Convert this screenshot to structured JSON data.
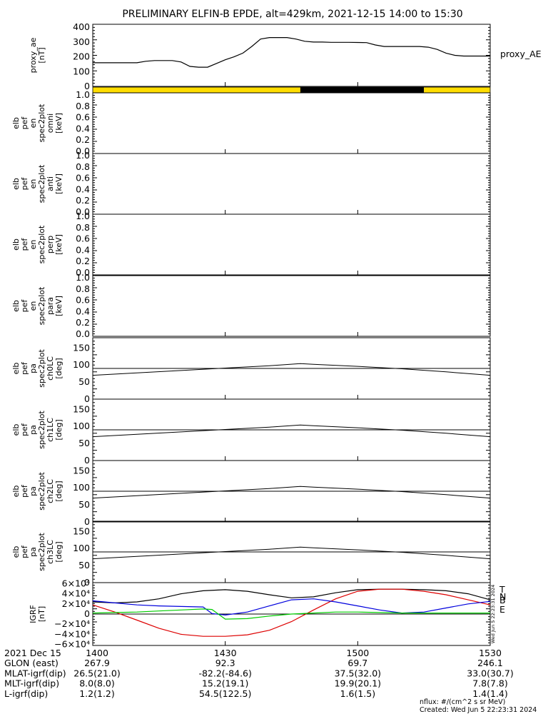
{
  "title": "PRELIMINARY ELFIN-B EPDE, alt=429km, 2021-12-15 14:00 to 15:30",
  "panels": {
    "ae": {
      "ylabel": [
        "proxy_ae",
        "[nT]"
      ],
      "legend": "proxy_AE",
      "yticks": [
        "400",
        "300",
        "200",
        "100",
        "0"
      ]
    },
    "spec_flux": [
      {
        "ylabel": [
          "elb",
          "pef",
          "en",
          "spec2plot",
          "omni",
          "[keV]"
        ]
      },
      {
        "ylabel": [
          "elb",
          "pef",
          "en",
          "spec2plot",
          "anti",
          "[keV]"
        ]
      },
      {
        "ylabel": [
          "elb",
          "pef",
          "en",
          "spec2plot",
          "perp",
          "[keV]"
        ]
      },
      {
        "ylabel": [
          "elb",
          "pef",
          "en",
          "spec2plot",
          "para",
          "[keV]"
        ]
      }
    ],
    "spec_flux_yticks": [
      "1.0",
      "0.8",
      "0.6",
      "0.4",
      "0.2",
      "0.0"
    ],
    "pitch": [
      {
        "ylabel": [
          "elb",
          "pef",
          "pa",
          "spec2plot",
          "ch0LC",
          "[deg]"
        ]
      },
      {
        "ylabel": [
          "elb",
          "pef",
          "pa",
          "spec2plot",
          "ch1LC",
          "[deg]"
        ]
      },
      {
        "ylabel": [
          "elb",
          "pef",
          "pa",
          "spec2plot",
          "ch2LC",
          "[deg]"
        ]
      },
      {
        "ylabel": [
          "elb",
          "pef",
          "pa",
          "spec2plot",
          "ch3LC",
          "[deg]"
        ]
      }
    ],
    "pitch_yticks": [
      "150",
      "100",
      "50",
      "0"
    ],
    "grf": {
      "ylabel": [
        "IGRF",
        "[nT]"
      ],
      "yticks": [
        "6×10⁴",
        "4×10⁴",
        "2×10⁴",
        "0",
        "−2×10⁴",
        "−4×10⁴",
        "−6×10⁴"
      ],
      "legend": [
        {
          "label": "T",
          "color": "#000000"
        },
        {
          "label": "N",
          "color": "#dd0000"
        },
        {
          "label": "B",
          "color": "#0000dd"
        },
        {
          "label": "E",
          "color": "#00cc00"
        }
      ]
    }
  },
  "footer": {
    "rows": [
      {
        "label": "2021 Dec 15",
        "values": [
          "1400",
          "1430",
          "1500",
          "1530"
        ]
      },
      {
        "label": "GLON (east)",
        "values": [
          "267.9",
          "92.3",
          "69.7",
          "246.1"
        ]
      },
      {
        "label": "MLAT-igrf(dip)",
        "values": [
          "26.5(21.0)",
          "-82.2(-84.6)",
          "37.5(32.0)",
          "33.0(30.7)"
        ]
      },
      {
        "label": "MLT-igrf(dip)",
        "values": [
          "8.0(8.0)",
          "15.2(19.1)",
          "19.9(20.1)",
          "7.8(7.8)"
        ]
      },
      {
        "label": "L-igrf(dip)",
        "values": [
          "1.2(1.2)",
          "54.5(122.5)",
          "1.6(1.5)",
          "1.4(1.4)"
        ]
      }
    ],
    "note1": "nflux: #/(cm^2 s sr MeV)",
    "note2": "Created: Wed Jun  5 22:23:31 2024",
    "side_stamp": "Wed Jun  5 22:23:31 2024"
  },
  "chart_data": [
    {
      "type": "line",
      "name": "proxy_AE",
      "x": [
        0,
        2,
        4,
        6,
        8,
        10,
        12,
        14,
        16,
        18,
        20,
        22,
        24,
        26,
        28,
        30,
        32,
        34,
        36,
        38,
        40,
        42,
        44,
        46,
        48,
        50,
        52,
        54,
        56,
        58,
        60,
        62,
        64,
        66,
        68,
        70,
        72,
        74,
        76,
        78,
        80,
        82,
        84,
        86,
        88,
        90
      ],
      "y": [
        160,
        160,
        160,
        160,
        160,
        160,
        170,
        175,
        175,
        175,
        165,
        135,
        130,
        130,
        155,
        180,
        200,
        225,
        270,
        320,
        330,
        330,
        330,
        320,
        305,
        300,
        300,
        298,
        298,
        298,
        297,
        296,
        280,
        270,
        270,
        270,
        270,
        270,
        265,
        250,
        225,
        210,
        205,
        205,
        205,
        205
      ],
      "ylim": [
        0,
        420
      ]
    },
    {
      "type": "bar",
      "name": "data coverage bar",
      "segments": [
        {
          "from": 0,
          "to": 47,
          "color": "#ffdd00"
        },
        {
          "from": 47,
          "to": 75,
          "color": "#000000"
        },
        {
          "from": 75,
          "to": 90,
          "color": "#ffdd00"
        }
      ]
    },
    {
      "type": "line",
      "panels": [
        "ch0LC",
        "ch1LC",
        "ch2LC",
        "ch3LC"
      ],
      "ylim": [
        0,
        180
      ],
      "series": [
        {
          "x": [
            0,
            10,
            20,
            30,
            40,
            47,
            50,
            60,
            70,
            80,
            90
          ],
          "y": [
            70,
            77,
            84,
            91,
            98,
            104,
            102,
            96,
            89,
            80,
            70
          ]
        },
        {
          "x": [
            0,
            90
          ],
          "y": [
            90,
            90
          ]
        }
      ]
    },
    {
      "type": "line",
      "name": "IGRF",
      "ylim": [
        -62000,
        62000
      ],
      "series": [
        {
          "name": "T",
          "color": "#000000",
          "x": [
            0,
            5,
            10,
            15,
            20,
            25,
            30,
            35,
            40,
            45,
            50,
            55,
            60,
            65,
            70,
            75,
            80,
            85,
            90
          ],
          "y": [
            24000,
            22000,
            24000,
            30000,
            40000,
            46000,
            48000,
            45000,
            38000,
            32000,
            34000,
            42000,
            48000,
            49000,
            49000,
            48000,
            46000,
            40000,
            28000
          ]
        },
        {
          "name": "N",
          "color": "#dd0000",
          "x": [
            0,
            5,
            10,
            15,
            20,
            25,
            30,
            35,
            40,
            45,
            50,
            55,
            60,
            65,
            70,
            75,
            80,
            85,
            90
          ],
          "y": [
            18000,
            4000,
            -12000,
            -28000,
            -40000,
            -44000,
            -44000,
            -41000,
            -32000,
            -15000,
            8000,
            30000,
            45000,
            49000,
            49000,
            45000,
            38000,
            28000,
            18000
          ]
        },
        {
          "name": "B",
          "color": "#0000dd",
          "x": [
            0,
            5,
            10,
            15,
            20,
            25,
            27,
            30,
            35,
            40,
            45,
            50,
            55,
            60,
            65,
            70,
            75,
            80,
            85,
            90
          ],
          "y": [
            26000,
            22000,
            18000,
            16000,
            15000,
            14000,
            1000,
            -2000,
            4000,
            16000,
            28000,
            30000,
            24000,
            16000,
            8000,
            2000,
            4000,
            12000,
            20000,
            25000
          ]
        },
        {
          "name": "E",
          "color": "#00cc00",
          "x": [
            0,
            5,
            10,
            15,
            20,
            25,
            27,
            30,
            35,
            40,
            45,
            50,
            55,
            60,
            65,
            70,
            75,
            80,
            85,
            90
          ],
          "y": [
            2000,
            3000,
            4000,
            6000,
            8000,
            10000,
            9000,
            -10000,
            -9000,
            -4000,
            0,
            2000,
            4000,
            4000,
            3000,
            2000,
            2000,
            2000,
            2000,
            2000
          ]
        }
      ]
    }
  ]
}
